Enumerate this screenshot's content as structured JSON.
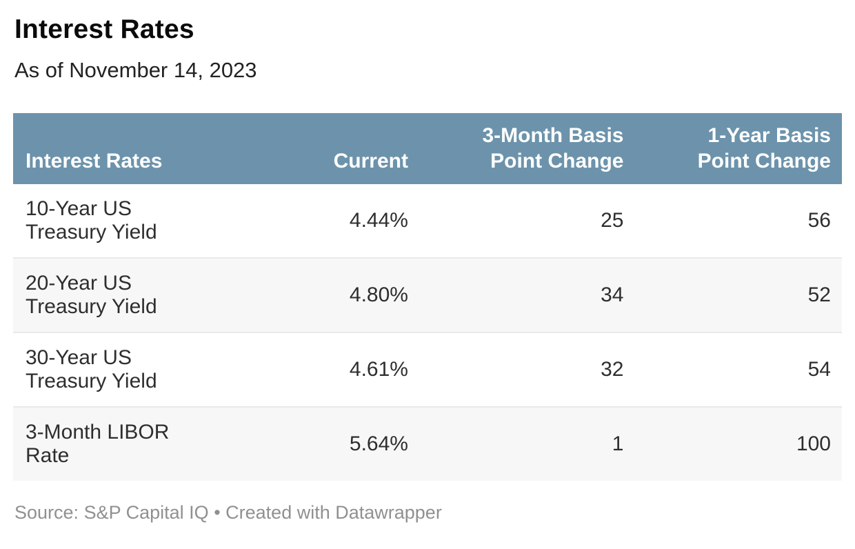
{
  "header": {
    "title": "Interest Rates",
    "subtitle": "As of November 14, 2023"
  },
  "table": {
    "columns": [
      {
        "label": "Interest Rates"
      },
      {
        "label": "Current"
      },
      {
        "label": "3-Month Basis\nPoint Change"
      },
      {
        "label": "1-Year Basis\nPoint Change"
      }
    ],
    "rows": [
      {
        "label": "10-Year US\nTreasury Yield",
        "current": "4.44%",
        "three_month_bp_change": "25",
        "one_year_bp_change": "56"
      },
      {
        "label": "20-Year US\nTreasury Yield",
        "current": "4.80%",
        "three_month_bp_change": "34",
        "one_year_bp_change": "52"
      },
      {
        "label": "30-Year US\nTreasury Yield",
        "current": "4.61%",
        "three_month_bp_change": "32",
        "one_year_bp_change": "54"
      },
      {
        "label": "3-Month LIBOR\nRate",
        "current": "5.64%",
        "three_month_bp_change": "1",
        "one_year_bp_change": "100"
      }
    ]
  },
  "footer": {
    "source_prefix": "Source:",
    "source_name": "S&P Capital IQ",
    "separator": "•",
    "credit": "Created with Datawrapper"
  },
  "colors": {
    "header_bg": "#6c93ab",
    "header_text": "#ffffff",
    "alt_row_bg": "#f7f7f7",
    "row_border": "#e9e9e9",
    "body_text": "#2e2e2e",
    "footer_text": "#909090"
  },
  "chart_data": {
    "type": "table",
    "title": "Interest Rates",
    "subtitle": "As of November 14, 2023",
    "columns": [
      "Interest Rates",
      "Current",
      "3-Month Basis Point Change",
      "1-Year Basis Point Change"
    ],
    "rows": [
      [
        "10-Year US Treasury Yield",
        "4.44%",
        25,
        56
      ],
      [
        "20-Year US Treasury Yield",
        "4.80%",
        34,
        52
      ],
      [
        "30-Year US Treasury Yield",
        "4.61%",
        32,
        54
      ],
      [
        "3-Month LIBOR Rate",
        "5.64%",
        1,
        100
      ]
    ],
    "source": "S&P Capital IQ",
    "credit": "Created with Datawrapper"
  }
}
